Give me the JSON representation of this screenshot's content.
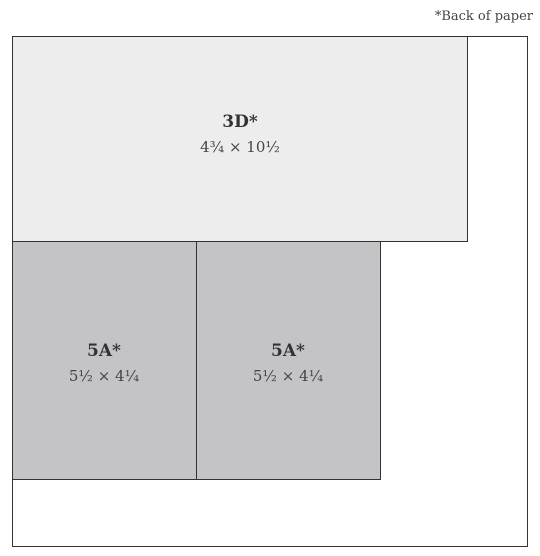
{
  "note": "*Back of paper",
  "pieces": [
    {
      "label": "3D*",
      "size": "4¾ × 10½"
    },
    {
      "label": "5A*",
      "size": "5½ × 4¼"
    },
    {
      "label": "5A*",
      "size": "5½ × 4¼"
    }
  ]
}
